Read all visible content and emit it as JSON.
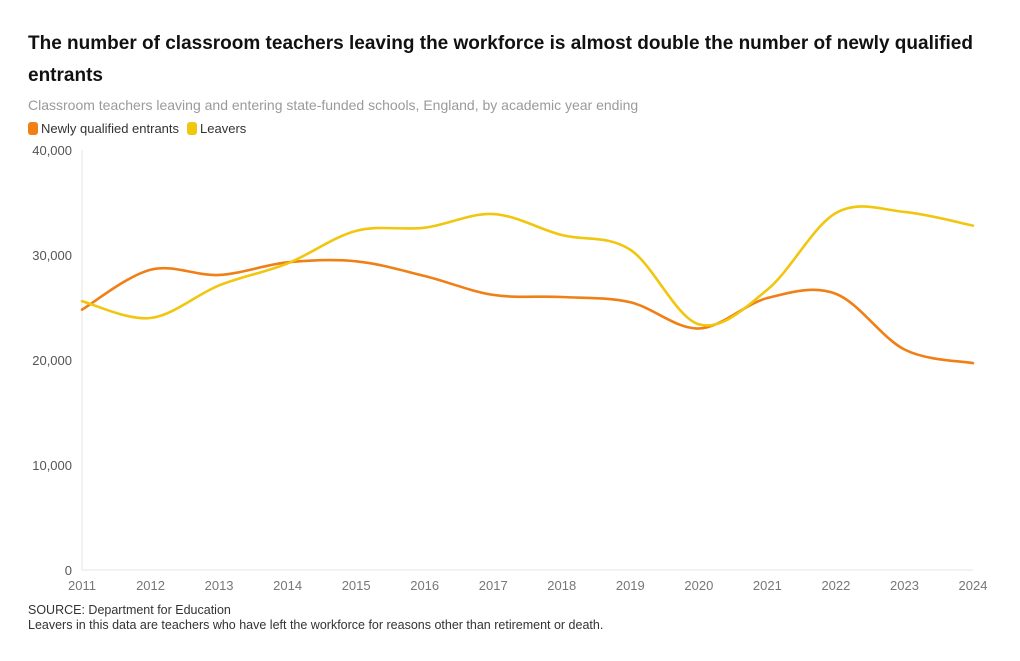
{
  "header": {
    "title": "The number of classroom teachers leaving the workforce is almost double the number of newly qualified entrants",
    "subtitle": "Classroom teachers leaving and entering state-funded schools, England, by academic year ending"
  },
  "chart_data": {
    "type": "line",
    "x": [
      2011,
      2012,
      2013,
      2014,
      2015,
      2016,
      2017,
      2018,
      2019,
      2020,
      2021,
      2022,
      2023,
      2024
    ],
    "series": [
      {
        "name": "Newly qualified entrants",
        "color": "#f07f16",
        "values": [
          24800,
          28600,
          28100,
          29300,
          29400,
          28000,
          26200,
          26000,
          25500,
          23000,
          25900,
          26300,
          21000,
          19700
        ]
      },
      {
        "name": "Leavers",
        "color": "#f1c60f",
        "values": [
          25600,
          24000,
          27100,
          29200,
          32300,
          32600,
          33900,
          31900,
          30500,
          23400,
          26700,
          34000,
          34100,
          32800
        ]
      }
    ],
    "y_ticks": [
      "0",
      "10,000",
      "20,000",
      "30,000",
      "40,000"
    ],
    "x_ticks": [
      "2011",
      "2012",
      "2013",
      "2014",
      "2015",
      "2016",
      "2017",
      "2018",
      "2019",
      "2020",
      "2021",
      "2022",
      "2023",
      "2024"
    ],
    "ylim": [
      0,
      40000
    ],
    "grid": false,
    "legend_position": "top-left"
  },
  "footer": {
    "source": "SOURCE: Department for Education",
    "note": "Leavers in this data are teachers who have left the workforce for reasons other than retirement or death."
  }
}
